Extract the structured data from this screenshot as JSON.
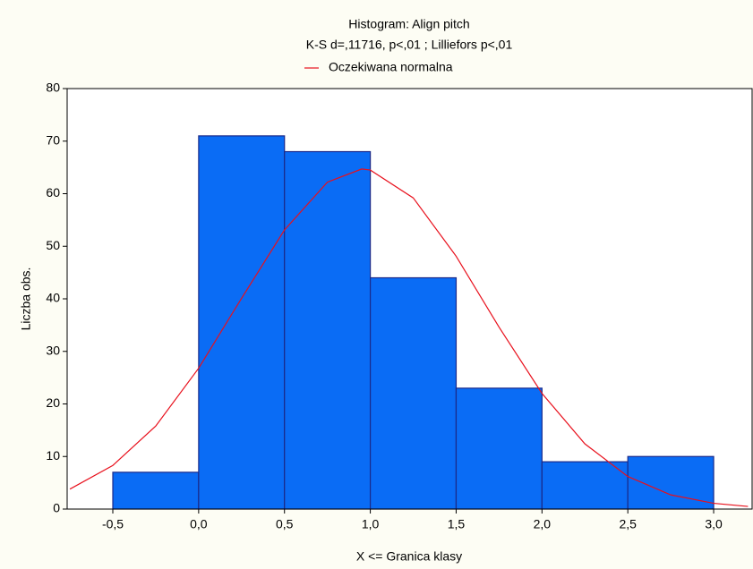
{
  "chart_data": {
    "type": "histogram",
    "title": "Histogram: Align pitch",
    "subtitle": "K-S d=,11716, p<,01 ; Lilliefors p<,01",
    "x_label": "X <= Granica klasy",
    "y_label": "Liczba obs.",
    "bins": [
      -0.5,
      0.0,
      0.5,
      1.0,
      1.5,
      2.0,
      2.5,
      3.0
    ],
    "values": [
      7,
      71,
      68,
      44,
      23,
      9,
      10
    ],
    "color": "#0a6cf5",
    "xlim": [
      -0.766,
      3.224
    ],
    "xticks": [
      {
        "value": -0.5,
        "label": "-0,5"
      },
      {
        "value": 0.0,
        "label": "0,0"
      },
      {
        "value": 0.5,
        "label": "0,5"
      },
      {
        "value": 1.0,
        "label": "1,0"
      },
      {
        "value": 1.5,
        "label": "1,5"
      },
      {
        "value": 2.0,
        "label": "2,0"
      },
      {
        "value": 2.5,
        "label": "2,5"
      },
      {
        "value": 3.0,
        "label": "3,0"
      }
    ],
    "ylim": [
      0,
      80
    ],
    "yticks": [
      0,
      10,
      20,
      30,
      40,
      50,
      60,
      70,
      80
    ],
    "grid": false,
    "legend": "top",
    "series": [
      {
        "name": "Oczekiwana normalna",
        "color": "#e8101c",
        "x": [
          -0.75,
          -0.5,
          -0.25,
          0.0,
          0.25,
          0.5,
          0.75,
          0.95,
          1.0,
          1.25,
          1.5,
          1.75,
          2.0,
          2.25,
          2.5,
          2.75,
          3.0,
          3.2
        ],
        "values": [
          3.8,
          8.3,
          15.8,
          26.8,
          40.1,
          53.1,
          62.2,
          64.7,
          64.5,
          59.2,
          48.1,
          34.6,
          22.0,
          12.4,
          6.2,
          2.7,
          1.1,
          0.5
        ]
      }
    ]
  }
}
